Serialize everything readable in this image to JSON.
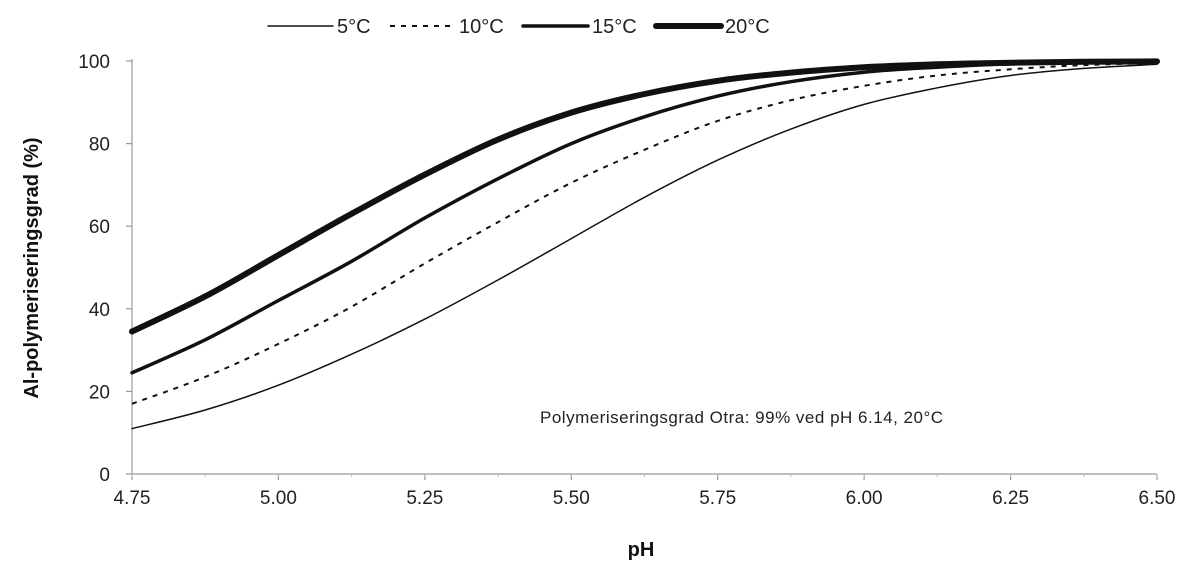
{
  "chart_data": {
    "type": "line",
    "title": "",
    "xlabel": "pH",
    "ylabel": "Al-polymeriseringsgrad (%)",
    "xlim": [
      4.75,
      6.5
    ],
    "ylim": [
      0,
      100
    ],
    "x_ticks": [
      "4.75",
      "5.00",
      "5.25",
      "5.50",
      "5.75",
      "6.00",
      "6.25",
      "6.50"
    ],
    "y_ticks": [
      "0",
      "20",
      "40",
      "60",
      "80",
      "100"
    ],
    "grid": false,
    "legend_position": "top",
    "annotation": "Polymeriseringsgrad Otra: 99% ved pH 6.14, 20°C",
    "x": [
      4.75,
      4.875,
      5.0,
      5.125,
      5.25,
      5.375,
      5.5,
      5.625,
      5.75,
      5.875,
      6.0,
      6.125,
      6.25,
      6.375,
      6.5
    ],
    "series": [
      {
        "name": "5°C",
        "style": "solid",
        "stroke_width": 1.5,
        "values": [
          11,
          15.5,
          21.5,
          29,
          37.5,
          47,
          57,
          67,
          76,
          83.5,
          89.5,
          93.5,
          96.5,
          98.2,
          99.2
        ]
      },
      {
        "name": "10°C",
        "style": "dotted",
        "stroke_width": 2,
        "values": [
          17,
          23.5,
          31.5,
          40.5,
          51,
          61,
          70.5,
          78.5,
          85.5,
          90.5,
          94,
          96.5,
          98,
          99,
          99.5
        ]
      },
      {
        "name": "15°C",
        "style": "solid",
        "stroke_width": 3.5,
        "values": [
          24.5,
          32.5,
          42,
          51.5,
          62,
          71.5,
          80,
          86.5,
          91.5,
          95,
          97.3,
          98.5,
          99.3,
          99.6,
          99.8
        ]
      },
      {
        "name": "20°C",
        "style": "solid",
        "stroke_width": 6,
        "values": [
          34.5,
          43,
          53,
          63,
          72.5,
          81,
          87.5,
          92,
          95.2,
          97.2,
          98.5,
          99.2,
          99.6,
          99.8,
          99.9
        ]
      }
    ]
  }
}
